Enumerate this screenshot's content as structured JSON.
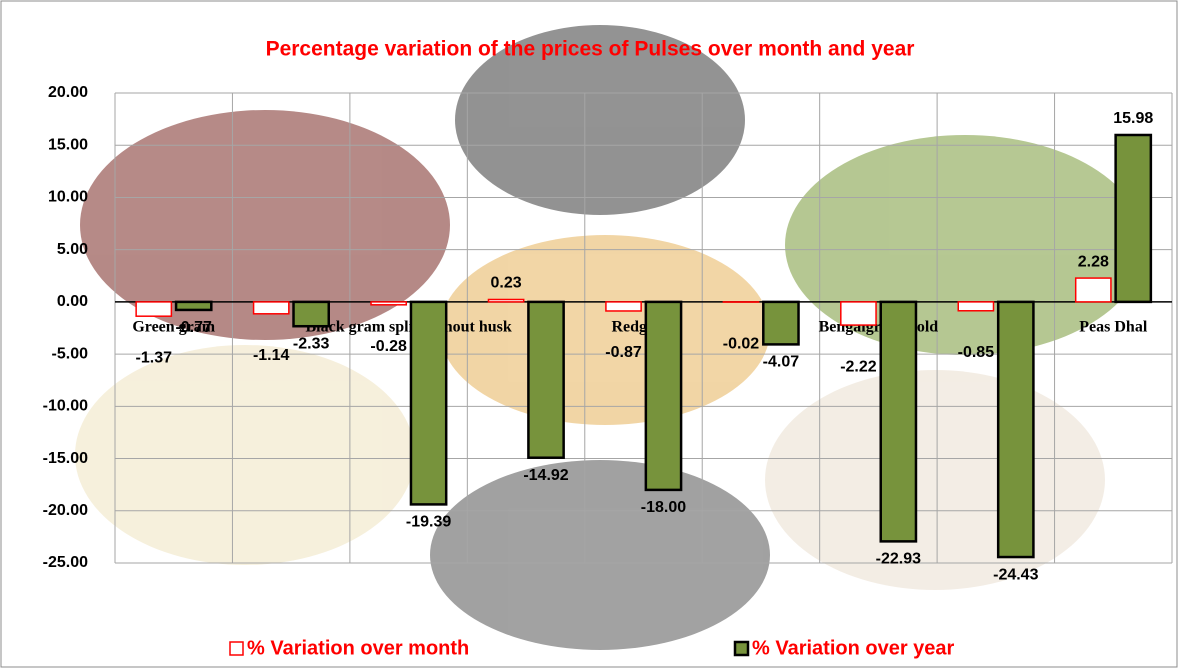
{
  "chart_data": {
    "type": "bar",
    "title": "Percentage variation of the prices of Pulses over month and year",
    "categories": [
      "Green gram",
      null,
      "Black gram split without husk",
      null,
      "Redgram",
      null,
      "Bengalgram Bold",
      null,
      "Peas Dhal"
    ],
    "series": [
      {
        "name": "% Variation over month",
        "color": "#ffffff",
        "stroke": "#ff0000",
        "values": [
          -1.37,
          -1.14,
          -0.28,
          0.23,
          -0.87,
          -0.02,
          -2.22,
          -0.85,
          2.28
        ],
        "value_labels": [
          "-1.37",
          "-1.14",
          "-0.28",
          "0.23",
          "-0.87",
          "-0.02",
          "-2.22",
          "-0.85",
          "2.28"
        ]
      },
      {
        "name": "% Variation over year",
        "color": "#77933c",
        "stroke": "#000000",
        "values": [
          -0.77,
          -2.33,
          -19.39,
          -14.92,
          -18,
          -4.07,
          -22.93,
          -24.43,
          15.98
        ],
        "value_labels": [
          "-0.77",
          "-2.33",
          "-19.39",
          "-14.92",
          "-18.00",
          "-4.07",
          "-22.93",
          "-24.43",
          "15.98"
        ]
      }
    ],
    "ylim": [
      -25,
      20
    ],
    "yticks": [
      {
        "value": -25,
        "label": "-25.00"
      },
      {
        "value": -20,
        "label": "-20.00"
      },
      {
        "value": -15,
        "label": "-15.00"
      },
      {
        "value": -10,
        "label": "-10.00"
      },
      {
        "value": -5,
        "label": "-5.00"
      },
      {
        "value": 0,
        "label": "0.00"
      },
      {
        "value": 5,
        "label": "5.00"
      },
      {
        "value": 10,
        "label": "10.00"
      },
      {
        "value": 15,
        "label": "15.00"
      },
      {
        "value": 20,
        "label": "20.00"
      }
    ],
    "grid": true,
    "legend": "bottom"
  }
}
